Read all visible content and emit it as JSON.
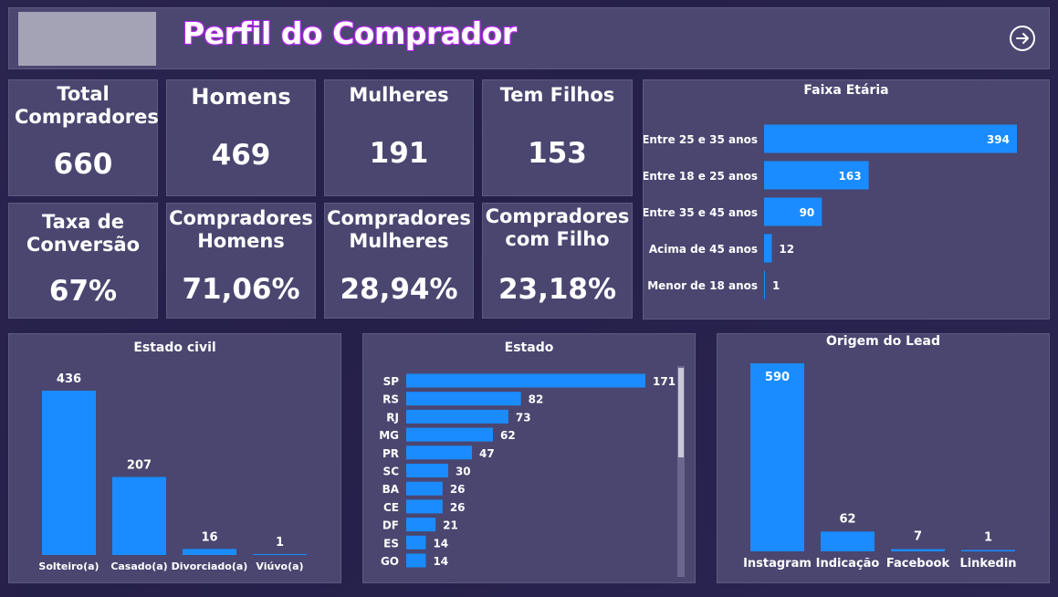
{
  "header": {
    "title": "Perfil do Comprador"
  },
  "cards": [
    {
      "label": "Total Compradores",
      "value": "660"
    },
    {
      "label": "Homens",
      "value": "469"
    },
    {
      "label": "Mulheres",
      "value": "191"
    },
    {
      "label": "Tem Filhos",
      "value": "153"
    },
    {
      "label": "Taxa de Conversão",
      "value": "67%"
    },
    {
      "label": "Compradores Homens",
      "value": "71,06%"
    },
    {
      "label": "Compradores Mulheres",
      "value": "28,94%"
    },
    {
      "label": "Compradores com Filho",
      "value": "23,18%"
    }
  ],
  "colors": {
    "bar": "#1a8cff",
    "panel": "#4a4670",
    "background": "#26214b"
  },
  "chart_data": [
    {
      "type": "bar",
      "orientation": "horizontal",
      "title": "Faixa Etária",
      "categories": [
        "Entre 25 e 35 anos",
        "Entre 18 e 25 anos",
        "Entre 35 e 45 anos",
        "Acima de 45 anos",
        "Menor de 18 anos"
      ],
      "values": [
        394,
        163,
        90,
        12,
        1
      ]
    },
    {
      "type": "bar",
      "orientation": "vertical",
      "title": "Estado civil",
      "categories": [
        "Solteiro(a)",
        "Casado(a)",
        "Divorciado(a)",
        "Viúvo(a)"
      ],
      "values": [
        436,
        207,
        16,
        1
      ]
    },
    {
      "type": "bar",
      "orientation": "horizontal",
      "title": "Estado",
      "categories": [
        "SP",
        "RS",
        "RJ",
        "MG",
        "PR",
        "SC",
        "BA",
        "CE",
        "DF",
        "ES",
        "GO"
      ],
      "values": [
        171,
        82,
        73,
        62,
        47,
        30,
        26,
        26,
        21,
        14,
        14
      ]
    },
    {
      "type": "bar",
      "orientation": "vertical",
      "title": "Origem do Lead",
      "categories": [
        "Instagram",
        "Indicação",
        "Facebook",
        "Linkedin"
      ],
      "values": [
        590,
        62,
        7,
        1
      ]
    }
  ]
}
